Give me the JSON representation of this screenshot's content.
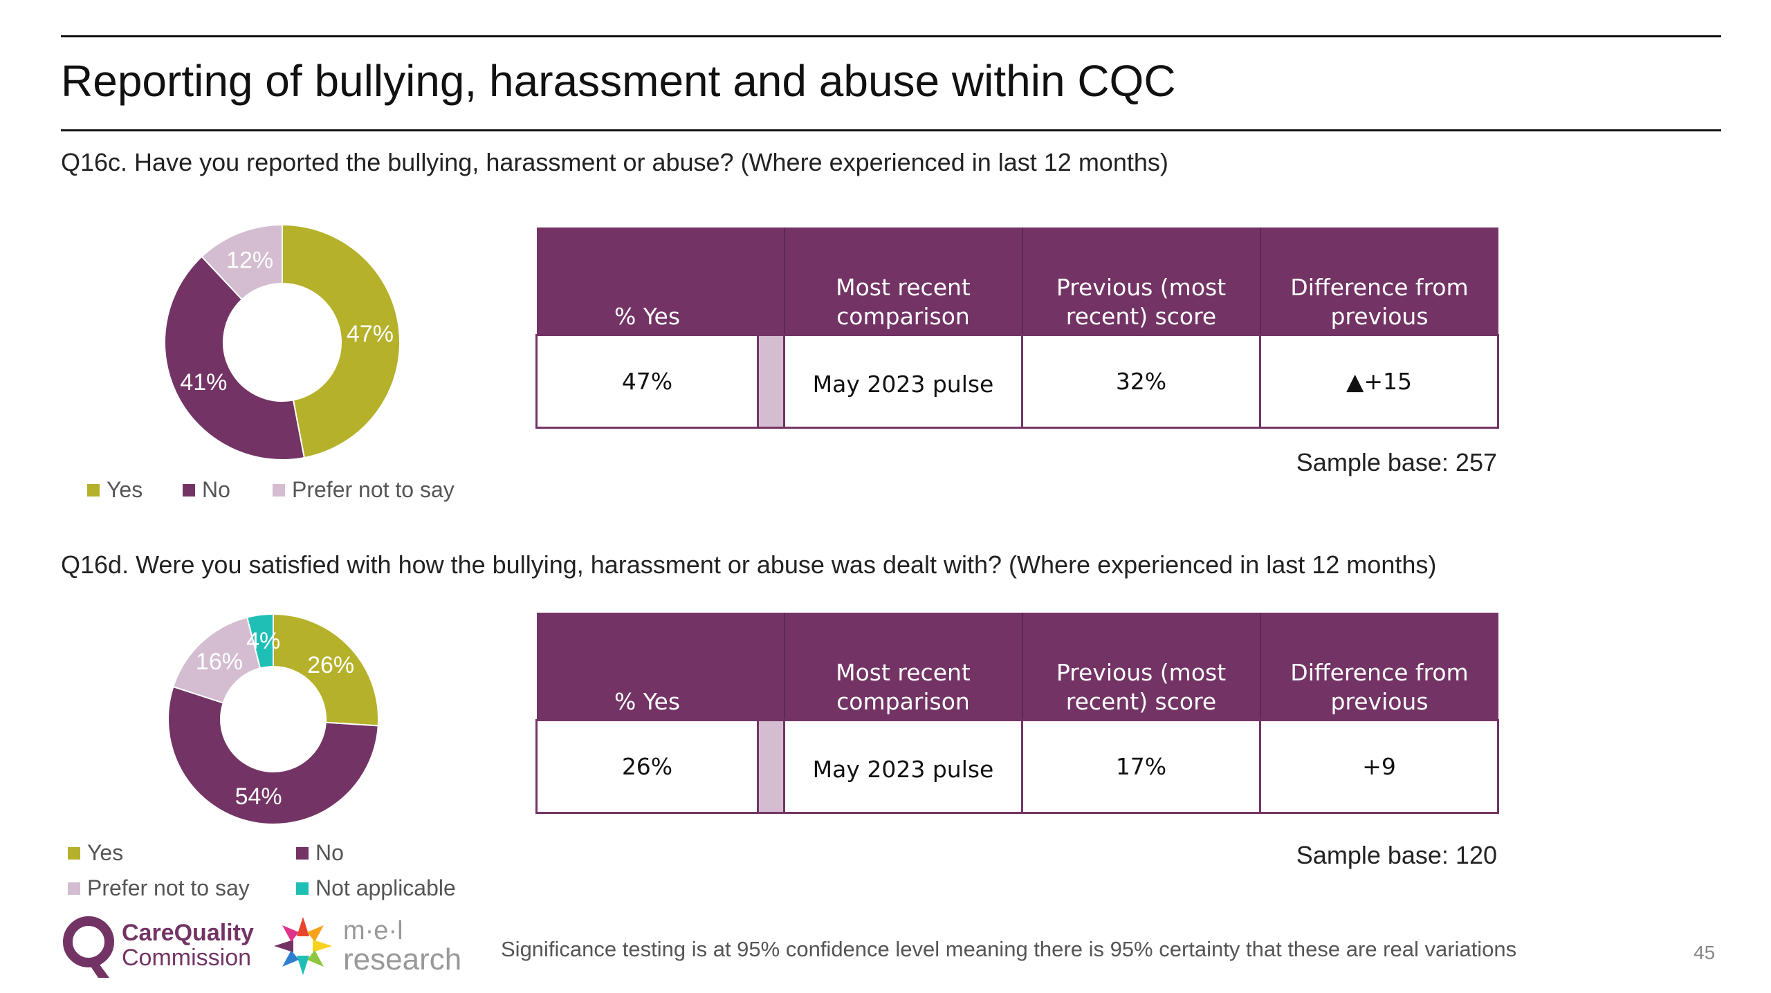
{
  "title": "Reporting of bullying, harassment and abuse within CQC",
  "colors": {
    "yes": "#b5b12b",
    "no": "#733465",
    "prefer_not": "#d4bdd0",
    "not_applicable": "#1fbfb5",
    "header": "#733465"
  },
  "q16c": {
    "question": "Q16c. Have you reported the bullying, harassment or abuse? (Where experienced in last 12 months)",
    "legend": [
      "Yes",
      "No",
      "Prefer not to say"
    ],
    "table": {
      "headers": [
        "% Yes",
        "Most recent comparison",
        "Previous (most recent) score",
        "Difference from previous"
      ],
      "row": [
        "47%",
        "May 2023 pulse",
        "32%",
        "▲+15"
      ]
    },
    "sample_base": "Sample base: 257"
  },
  "q16d": {
    "question": "Q16d. Were you satisfied with how the bullying, harassment or abuse was dealt with? (Where experienced in last 12 months)",
    "legend": [
      "Yes",
      "No",
      "Prefer not to say",
      "Not applicable"
    ],
    "table": {
      "headers": [
        "% Yes",
        "Most recent comparison",
        "Previous (most recent) score",
        "Difference from previous"
      ],
      "row": [
        "26%",
        "May 2023 pulse",
        "17%",
        "+9"
      ]
    },
    "sample_base": "Sample base: 120"
  },
  "chart_data": [
    {
      "type": "pie",
      "title": "",
      "categories": [
        "Yes",
        "No",
        "Prefer not to say"
      ],
      "values": [
        47,
        41,
        12
      ],
      "labels": [
        "47%",
        "41%",
        "12%"
      ],
      "legend_position": "bottom"
    },
    {
      "type": "pie",
      "title": "",
      "categories": [
        "Yes",
        "No",
        "Prefer not to say",
        "Not applicable"
      ],
      "values": [
        26,
        54,
        16,
        4
      ],
      "labels": [
        "26%",
        "54%",
        "16%",
        "4%"
      ],
      "legend_position": "bottom"
    }
  ],
  "footnote": "Significance testing is at 95% confidence level meaning there is 95% certainty that these are real variations",
  "page_number": "45",
  "logos": {
    "cqc_line1": "CareQuality",
    "cqc_line2": "Commission",
    "mel_line1": "m·e·l",
    "mel_line2": "research"
  }
}
